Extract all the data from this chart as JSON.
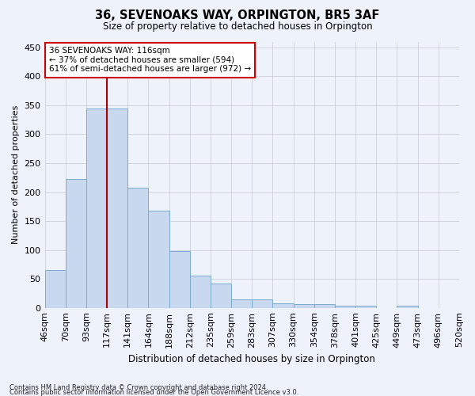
{
  "title": "36, SEVENOAKS WAY, ORPINGTON, BR5 3AF",
  "subtitle": "Size of property relative to detached houses in Orpington",
  "xlabel": "Distribution of detached houses by size in Orpington",
  "ylabel": "Number of detached properties",
  "bar_values": [
    65,
    222,
    345,
    345,
    208,
    168,
    98,
    56,
    42,
    14,
    14,
    8,
    6,
    6,
    4,
    4,
    0,
    4,
    0,
    0
  ],
  "categories": [
    "46sqm",
    "70sqm",
    "93sqm",
    "117sqm",
    "141sqm",
    "164sqm",
    "188sqm",
    "212sqm",
    "235sqm",
    "259sqm",
    "283sqm",
    "307sqm",
    "330sqm",
    "354sqm",
    "378sqm",
    "401sqm",
    "425sqm",
    "449sqm",
    "473sqm",
    "496sqm",
    "520sqm"
  ],
  "bar_color": "#c8d8ee",
  "bar_edge_color": "#7aabcf",
  "vline_color": "#aa0000",
  "annotation_text": "36 SEVENOAKS WAY: 116sqm\n← 37% of detached houses are smaller (594)\n61% of semi-detached houses are larger (972) →",
  "annotation_box_color": "#ffffff",
  "annotation_box_edge": "#cc0000",
  "ylim": [
    0,
    460
  ],
  "footer_line1": "Contains HM Land Registry data © Crown copyright and database right 2024.",
  "footer_line2": "Contains public sector information licensed under the Open Government Licence v3.0.",
  "background_color": "#eef2fb",
  "grid_color": "#c8c8d8"
}
